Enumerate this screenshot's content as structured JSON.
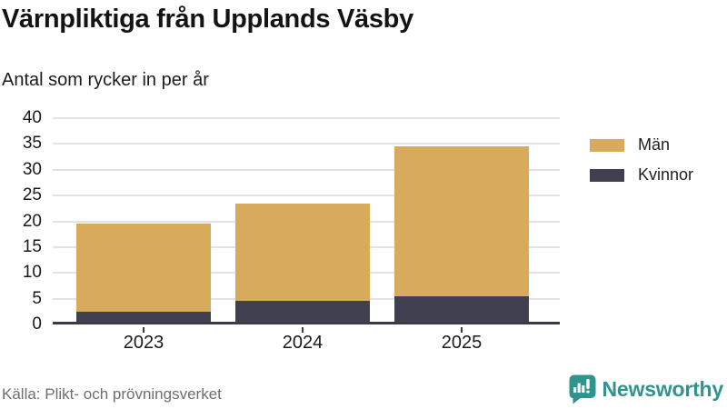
{
  "header": {
    "title": "Värnpliktiga från Upplands Väsby",
    "subtitle": "Antal som rycker in per år"
  },
  "chart_data": {
    "type": "bar",
    "stacked": true,
    "categories": [
      "2023",
      "2024",
      "2025"
    ],
    "series": [
      {
        "name": "Män",
        "key": "man",
        "color": "#d8ab5c",
        "values": [
          17,
          19,
          29
        ]
      },
      {
        "name": "Kvinnor",
        "key": "kvinnor",
        "color": "#404050",
        "values": [
          2,
          4,
          5
        ]
      }
    ],
    "totals": [
      19,
      23,
      34
    ],
    "ylim": [
      0,
      40
    ],
    "yticks": [
      0,
      5,
      10,
      15,
      20,
      25,
      30,
      35,
      40
    ],
    "grid": true,
    "gridline_color": "#e2e2e2",
    "axis_color": "#3b3b44",
    "legend_position": "right"
  },
  "footer": {
    "source": "Källa: Plikt- och prövningsverket",
    "brand": "Newsworthy",
    "brand_color": "#2f948e"
  }
}
